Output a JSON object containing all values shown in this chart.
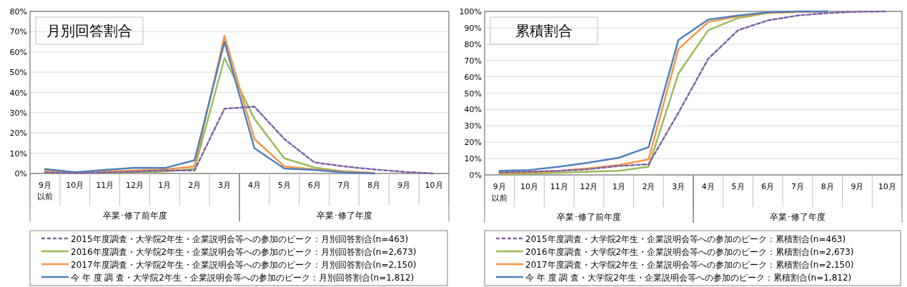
{
  "chart_data": [
    {
      "type": "line",
      "title": "月別回答割合",
      "categories": [
        "9月以前",
        "10月",
        "11月",
        "12月",
        "1月",
        "2月",
        "3月",
        "4月",
        "5月",
        "6月",
        "7月",
        "8月",
        "9月",
        "10月"
      ],
      "annotations": [
        "卒業･修了前年度",
        "卒業･修了年度"
      ],
      "ylim": [
        0,
        80
      ],
      "yticks": [
        {
          "value": 0,
          "label": "0%"
        },
        {
          "value": 10,
          "label": "10%"
        },
        {
          "value": 20,
          "label": "20%"
        },
        {
          "value": 30,
          "label": "30%"
        },
        {
          "value": 40,
          "label": "40%"
        },
        {
          "value": 50,
          "label": "50%"
        },
        {
          "value": 60,
          "label": "60%"
        },
        {
          "value": 70,
          "label": "70%"
        },
        {
          "value": 80,
          "label": "80%"
        }
      ],
      "grid": "y",
      "legend": "bottom",
      "marker": "none",
      "series": [
        {
          "name": "2015年度調査・大学院2年生・企業説明会等への参加のピーク：月別回答割合(n=463)",
          "color": "#8064a2",
          "line_style": "dashed",
          "values": [
            0.5,
            0.2,
            0.5,
            0.9,
            1.5,
            1.5,
            32,
            33,
            17,
            5.5,
            3.5,
            2,
            0.8,
            0
          ]
        },
        {
          "name": "2016年度調査・大学院2年生・企業説明会等への参加のピーク：月別回答割合(n=2,673)",
          "color": "#9bbb59",
          "line_style": "solid",
          "values": [
            0.5,
            0.3,
            0.5,
            0.7,
            1,
            2.3,
            57,
            27,
            7.5,
            3,
            1,
            0.3,
            null,
            null
          ]
        },
        {
          "name": "2017年度調査・大学院2年生・企業説明会等への参加のピーク：月別回答割合(n=2,150)",
          "color": "#f79646",
          "line_style": "solid",
          "values": [
            1.5,
            0.5,
            1,
            1.5,
            2,
            3.5,
            68,
            17,
            3.5,
            2,
            1,
            0.3,
            null,
            null
          ]
        },
        {
          "name": "今 年 度 調 査・大学院2年生・企業説明会等への参加のピーク：月別回答割合(n=1,812)",
          "color": "#4f81bd",
          "line_style": "solid",
          "values": [
            2.2,
            0.6,
            1.8,
            2.8,
            2.7,
            6.5,
            65,
            12.5,
            2.5,
            1.8,
            0.5,
            0,
            null,
            null
          ]
        }
      ]
    },
    {
      "type": "line",
      "title": "累積割合",
      "categories": [
        "9月以前",
        "10月",
        "11月",
        "12月",
        "1月",
        "2月",
        "3月",
        "4月",
        "5月",
        "6月",
        "7月",
        "8月",
        "9月",
        "10月"
      ],
      "annotations": [
        "卒業･修了前年度",
        "卒業･修了年度"
      ],
      "ylim": [
        0,
        100
      ],
      "yticks": [
        {
          "value": 0,
          "label": "0%"
        },
        {
          "value": 10,
          "label": "10%"
        },
        {
          "value": 20,
          "label": "20%"
        },
        {
          "value": 30,
          "label": "30%"
        },
        {
          "value": 40,
          "label": "40%"
        },
        {
          "value": 50,
          "label": "50%"
        },
        {
          "value": 60,
          "label": "60%"
        },
        {
          "value": 70,
          "label": "70%"
        },
        {
          "value": 80,
          "label": "80%"
        },
        {
          "value": 90,
          "label": "90%"
        },
        {
          "value": 100,
          "label": "100%"
        }
      ],
      "grid": "y",
      "legend": "bottom",
      "marker": "none",
      "series": [
        {
          "name": "2015年度調査・大学院2年生・企業説明会等への参加のピーク：累積割合(n=463)",
          "color": "#8064a2",
          "line_style": "dashed",
          "values": [
            1.5,
            2,
            2.5,
            3.5,
            5.5,
            6.5,
            38,
            71,
            88.5,
            94.5,
            97.5,
            99,
            99.8,
            100
          ]
        },
        {
          "name": "2016年度調査・大学院2年生・企業説明会等への参加のピーク：累積割合(n=2,673)",
          "color": "#9bbb59",
          "line_style": "solid",
          "values": [
            0.5,
            0.8,
            1.3,
            2,
            2.5,
            5,
            62,
            88.5,
            96,
            99,
            99.7,
            100,
            null,
            null
          ]
        },
        {
          "name": "2017年度調査・大学院2年生・企業説明会等への参加のピーク：累積割合(n=2,150)",
          "color": "#f79646",
          "line_style": "solid",
          "values": [
            1,
            1.5,
            2.5,
            4,
            6,
            9.5,
            77,
            93.5,
            97,
            99,
            99.7,
            100,
            null,
            null
          ]
        },
        {
          "name": "今 年 度 調 査・大学院2年生・企業説明会等への参加のピーク：累積割合(n=1,812)",
          "color": "#4f81bd",
          "line_style": "solid",
          "values": [
            2.5,
            3,
            5,
            7.5,
            10.5,
            17,
            82.5,
            95,
            97.5,
            99.5,
            100,
            100,
            null,
            null
          ]
        }
      ]
    }
  ]
}
